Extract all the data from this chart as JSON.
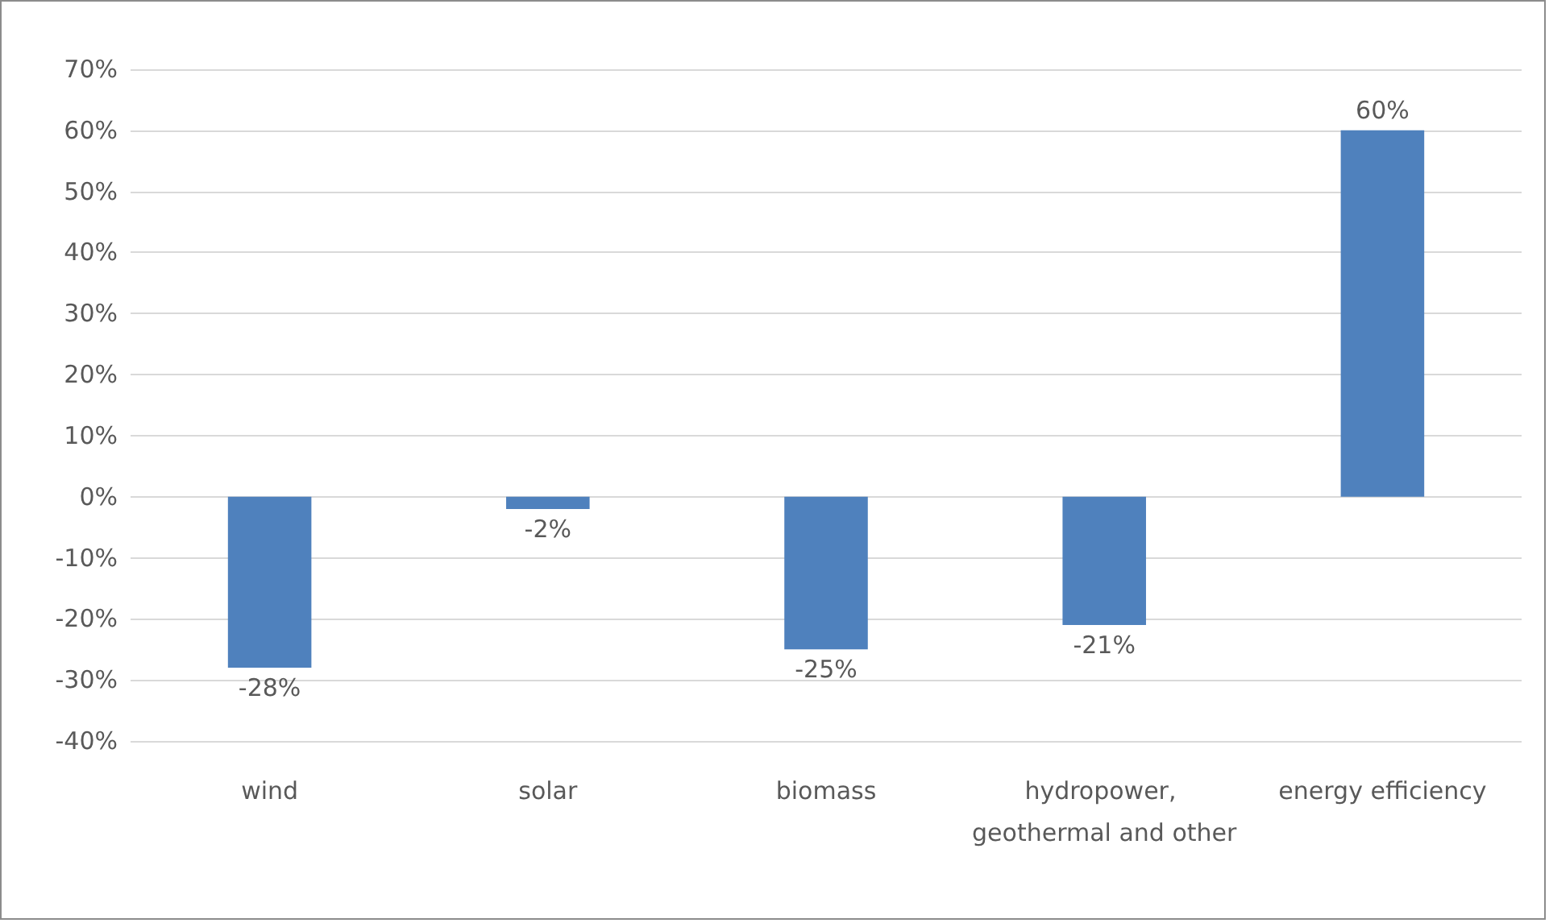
{
  "chart_data": {
    "type": "bar",
    "categories": [
      "wind",
      "solar",
      "biomass",
      "hydropower, geothermal and other",
      "energy efficiency"
    ],
    "values": [
      -28,
      -2,
      -25,
      -21,
      60
    ],
    "value_labels": [
      "-28%",
      "-2%",
      "-25%",
      "-21%",
      "60%"
    ],
    "color": "#4f81bd",
    "ylim": [
      -40,
      70
    ],
    "yticks": [
      {
        "value": -40,
        "label": "-40%"
      },
      {
        "value": -30,
        "label": "-30%"
      },
      {
        "value": -20,
        "label": "-20%"
      },
      {
        "value": -10,
        "label": "-10%"
      },
      {
        "value": 0,
        "label": "0%"
      },
      {
        "value": 10,
        "label": "10%"
      },
      {
        "value": 20,
        "label": "20%"
      },
      {
        "value": 30,
        "label": "30%"
      },
      {
        "value": 40,
        "label": "40%"
      },
      {
        "value": 50,
        "label": "50%"
      },
      {
        "value": 60,
        "label": "60%"
      },
      {
        "value": 70,
        "label": "70%"
      }
    ],
    "grid": "y"
  }
}
